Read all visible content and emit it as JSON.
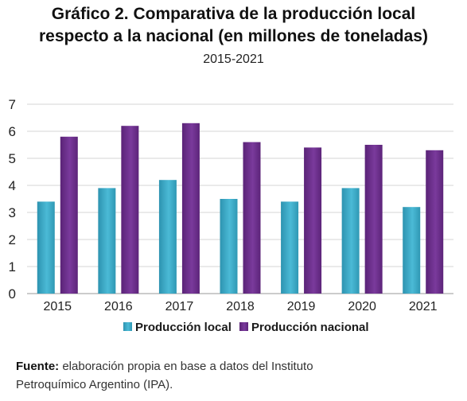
{
  "header": {
    "title_line1": "Gráfico 2. Comparativa de la producción local",
    "title_line2": "respecto a la nacional (en millones de toneladas)",
    "subtitle": "2015-2021"
  },
  "chart_data": {
    "type": "bar",
    "categories": [
      "2015",
      "2016",
      "2017",
      "2018",
      "2019",
      "2020",
      "2021"
    ],
    "series": [
      {
        "name": "Producción local",
        "values": [
          3.4,
          3.9,
          4.2,
          3.5,
          3.4,
          3.9,
          3.2
        ],
        "color": "#37a9c7"
      },
      {
        "name": "Producción nacional",
        "values": [
          5.8,
          6.2,
          6.3,
          5.6,
          5.4,
          5.5,
          5.3
        ],
        "color": "#6a2d8a"
      }
    ],
    "ylim": [
      0,
      7
    ],
    "yticks": [
      "0",
      "1",
      "2",
      "3",
      "4",
      "5",
      "6",
      "7"
    ],
    "grid": true,
    "legend": "bottom"
  },
  "footer": {
    "source_label": "Fuente:",
    "source_text_line1": "elaboración propia en base a datos del Instituto",
    "source_text_line2": "Petroquímico Argentino (IPA)."
  }
}
